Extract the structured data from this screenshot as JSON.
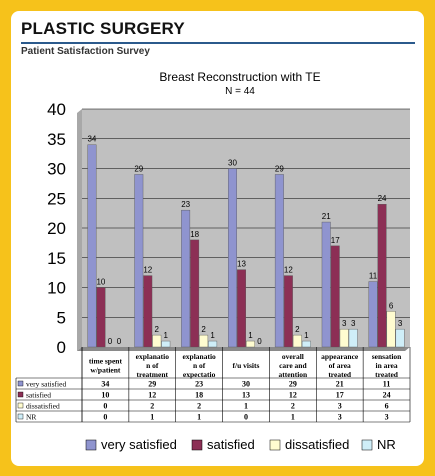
{
  "header": {
    "title": "PLASTIC SURGERY",
    "subtitle": "Patient Satisfaction Survey"
  },
  "colors": {
    "page_border": "#f6c21b",
    "header_rule": "#2b5a8c",
    "plot_background": "#c0c0c0",
    "very_satisfied": "#8f94cf",
    "satisfied": "#8c2f55",
    "dissatisfied": "#fffcd0",
    "nr": "#cfeef8"
  },
  "chart_data": {
    "type": "bar",
    "title": "Breast Reconstruction with TE",
    "subtitle": "N = 44",
    "xlabel": "",
    "ylabel": "",
    "ylim": [
      0,
      40
    ],
    "yticks": [
      0,
      5,
      10,
      15,
      20,
      25,
      30,
      35,
      40
    ],
    "grid": true,
    "legend_position": "bottom",
    "categories": [
      [
        "time spent",
        "w/patient"
      ],
      [
        "explanatio",
        "n of",
        "treatment"
      ],
      [
        "explanatio",
        "n of",
        "expectatio"
      ],
      [
        "f/u visits"
      ],
      [
        "overall",
        "care and",
        "attention"
      ],
      [
        "appearance",
        "of area",
        "treated"
      ],
      [
        "sensation",
        "in area",
        "treated"
      ]
    ],
    "series": [
      {
        "name": "very satisfied",
        "values": [
          34,
          29,
          23,
          30,
          29,
          21,
          11
        ]
      },
      {
        "name": "satisfied",
        "values": [
          10,
          12,
          18,
          13,
          12,
          17,
          24
        ]
      },
      {
        "name": "dissatisfied",
        "values": [
          0,
          2,
          2,
          1,
          2,
          3,
          6
        ]
      },
      {
        "name": "NR",
        "values": [
          0,
          1,
          1,
          0,
          1,
          3,
          3
        ]
      }
    ]
  }
}
